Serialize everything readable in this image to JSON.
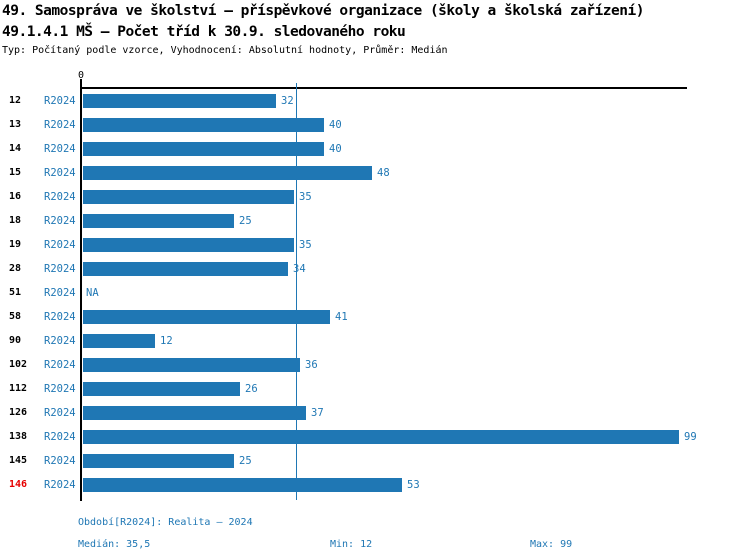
{
  "header": {
    "title": "49. Samospráva ve školství – příspěvkové organizace (školy a školská zařízení)",
    "subtitle": "49.1.4.1 MŠ – Počet tříd k 30.9. sledovaného roku",
    "meta": "Typ: Počítaný podle vzorce, Vyhodnocení: Absolutní hodnoty, Průměr: Medián"
  },
  "chart_data": {
    "type": "bar",
    "orientation": "horizontal",
    "series_label": "R2024",
    "categories": [
      "12",
      "13",
      "14",
      "15",
      "16",
      "18",
      "19",
      "28",
      "51",
      "58",
      "90",
      "102",
      "112",
      "126",
      "138",
      "145",
      "146"
    ],
    "values": [
      32,
      40,
      40,
      48,
      35,
      25,
      35,
      34,
      null,
      41,
      12,
      36,
      26,
      37,
      99,
      25,
      53
    ],
    "na_label": "NA",
    "axis_zero_label": "0",
    "xlim": [
      0,
      100
    ],
    "median_value": 35.5,
    "highlight_category": "146",
    "grid": "median line only",
    "legend_position": "none"
  },
  "footer": {
    "period": "Období[R2024]: Realita – 2024",
    "median": "Medián: 35,5",
    "min": "Min: 12",
    "max": "Max: 99"
  },
  "colors": {
    "bar": "#1f77b4",
    "blue_text": "#1f77b4",
    "median_line": "#1f77b4",
    "highlight_text": "#e60000",
    "axis": "#000000"
  }
}
